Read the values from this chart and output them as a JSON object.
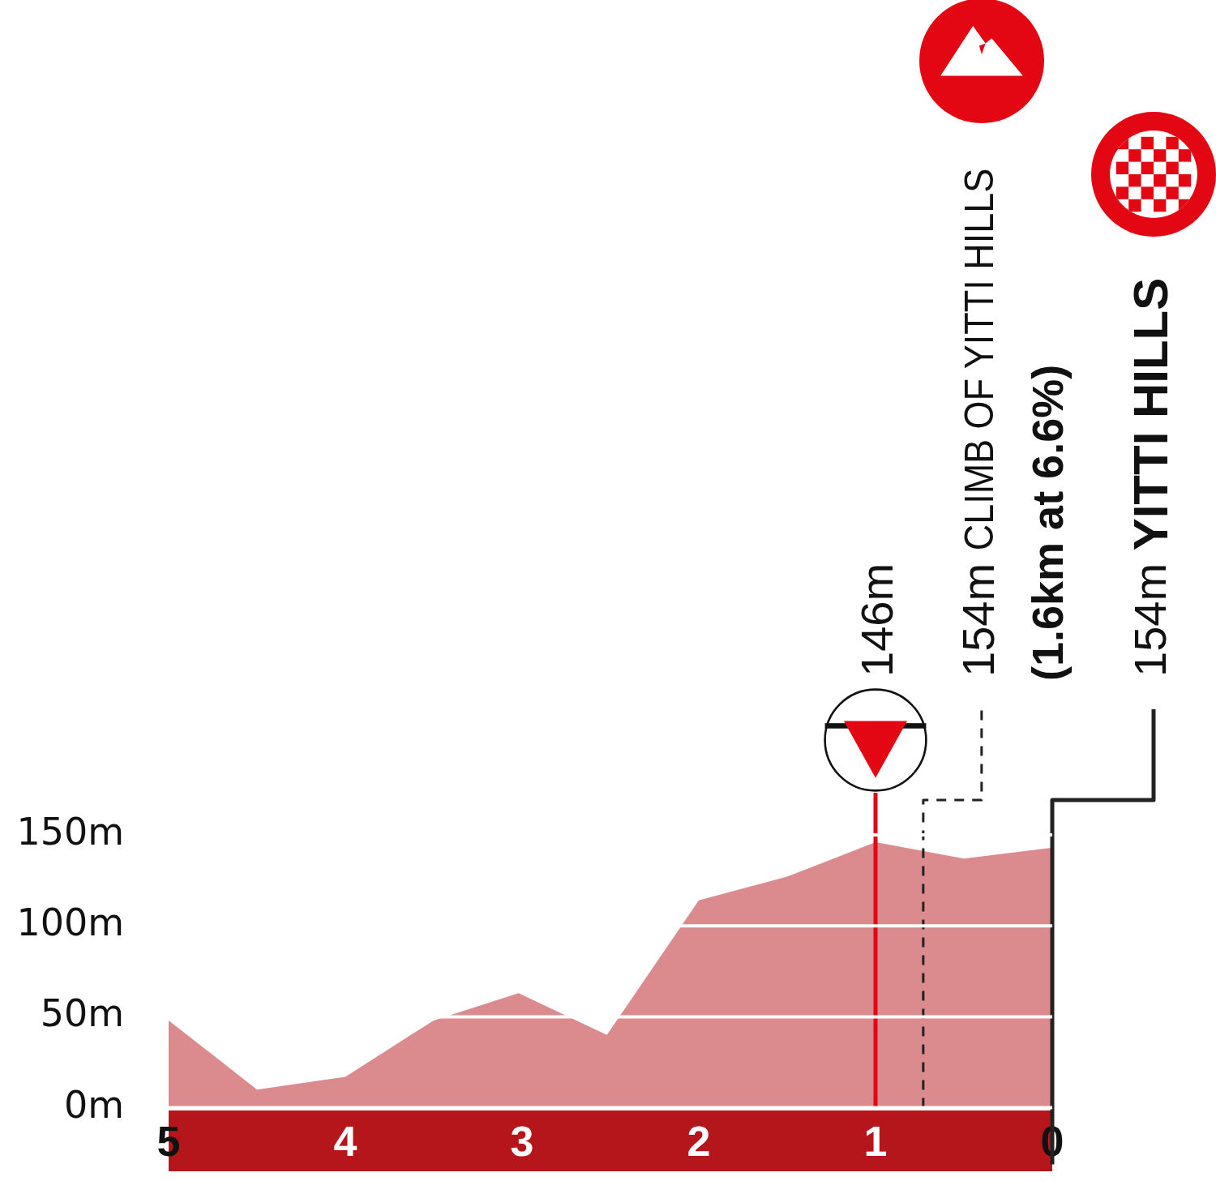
{
  "chart_data": {
    "type": "area",
    "x": [
      5,
      4.5,
      4,
      3.5,
      3.02,
      2.52,
      2,
      1.5,
      1,
      0.5,
      0
    ],
    "values": [
      48,
      10,
      17,
      48,
      63,
      40,
      114,
      127,
      146,
      137,
      143
    ],
    "color": "#db8a8e",
    "xlim": [
      5,
      0
    ],
    "xticks": [
      5,
      4,
      3,
      2,
      1,
      0
    ],
    "ylim": [
      0,
      150
    ],
    "yticks": [
      {
        "value": 0,
        "label": "0m"
      },
      {
        "value": 50,
        "label": "50m"
      },
      {
        "value": 100,
        "label": "100m"
      },
      {
        "value": 150,
        "label": "150m"
      }
    ],
    "grid": "y",
    "ref_lines": [
      {
        "axis": "x",
        "value": 1,
        "color": "#e30613"
      },
      {
        "axis": "x",
        "value": 0.73,
        "line_style": "dashed",
        "color": "#222222",
        "label": "154m CLIMB OF YITTI HILLS"
      },
      {
        "axis": "x",
        "value": 0,
        "color": "#222222",
        "label": "154m YITTI HILLS"
      }
    ],
    "annotations": [
      "146m",
      "(1.6km at 6.6%)"
    ]
  }
}
